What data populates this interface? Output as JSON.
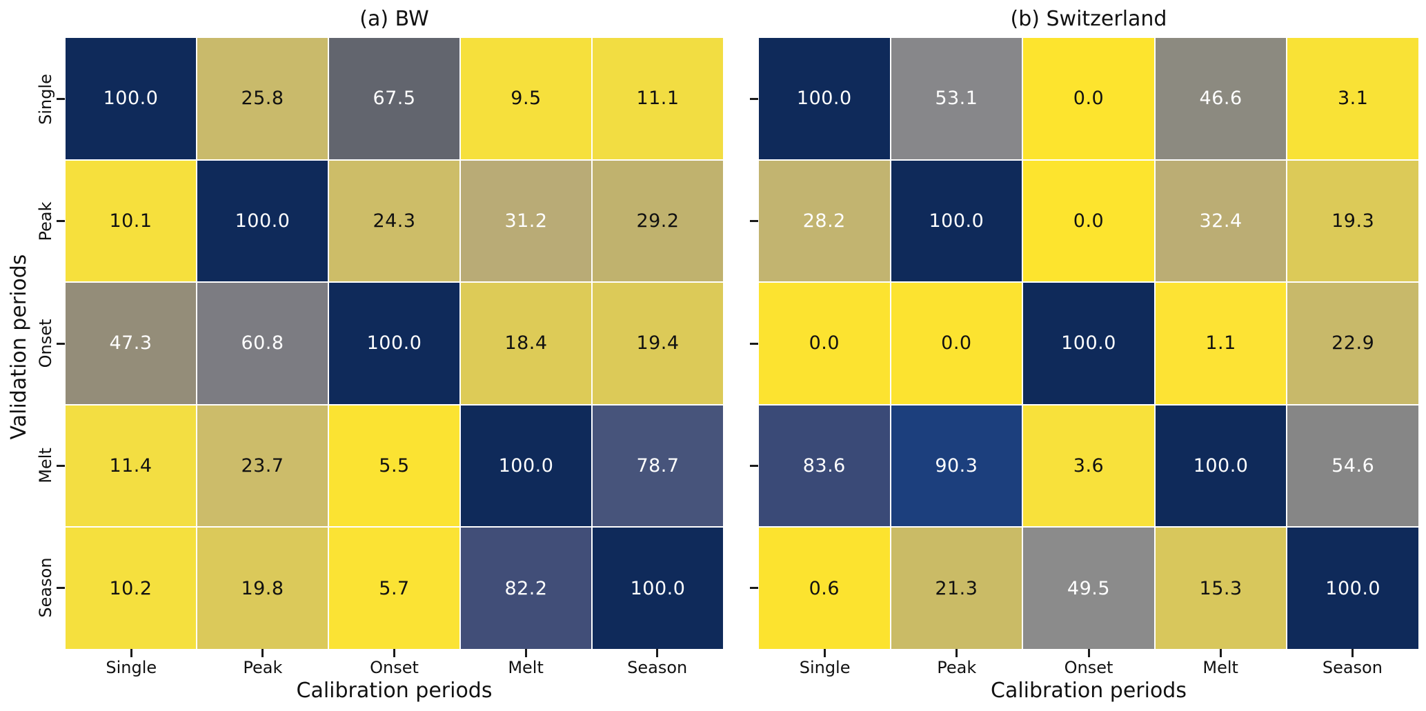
{
  "figure": {
    "background": "#ffffff",
    "text_color": "#111111",
    "gridline_color": "#ffffff",
    "colormap": {
      "name": "cividis_r",
      "high_color": "#0f2a5a",
      "low_color": "#fde42e"
    }
  },
  "chart_data": [
    {
      "type": "heatmap",
      "title": "(a) BW",
      "xlabel": "Calibration periods",
      "ylabel": "Validation periods",
      "x_categories": [
        "Single",
        "Peak",
        "Onset",
        "Melt",
        "Season"
      ],
      "y_categories": [
        "Single",
        "Peak",
        "Onset",
        "Melt",
        "Season"
      ],
      "value_range": [
        0,
        100
      ],
      "values": [
        [
          100.0,
          25.8,
          67.5,
          9.5,
          11.1
        ],
        [
          10.1,
          100.0,
          24.3,
          31.2,
          29.2
        ],
        [
          47.3,
          60.8,
          100.0,
          18.4,
          19.4
        ],
        [
          11.4,
          23.7,
          5.5,
          100.0,
          78.7
        ],
        [
          10.2,
          19.8,
          5.7,
          82.2,
          100.0
        ]
      ],
      "cell_colors": [
        [
          "#0f2a5a",
          "#c9ba6b",
          "#62656e",
          "#f6e03c",
          "#f2dd42"
        ],
        [
          "#f6e03d",
          "#0f2a5a",
          "#cdbd68",
          "#b9ab76",
          "#c0b26e"
        ],
        [
          "#948d79",
          "#7c7c82",
          "#0f2a5a",
          "#ddcb57",
          "#dcca58"
        ],
        [
          "#f3de42",
          "#ccbc6a",
          "#fbe332",
          "#0f2a5a",
          "#47547b"
        ],
        [
          "#f5e03e",
          "#dbc95a",
          "#fbe334",
          "#414e78",
          "#0f2a5a"
        ]
      ],
      "annot_colors": [
        [
          "#ffffff",
          "#111111",
          "#ffffff",
          "#111111",
          "#111111"
        ],
        [
          "#111111",
          "#ffffff",
          "#111111",
          "#ffffff",
          "#111111"
        ],
        [
          "#ffffff",
          "#ffffff",
          "#ffffff",
          "#111111",
          "#111111"
        ],
        [
          "#111111",
          "#111111",
          "#111111",
          "#ffffff",
          "#ffffff"
        ],
        [
          "#111111",
          "#111111",
          "#111111",
          "#ffffff",
          "#ffffff"
        ]
      ]
    },
    {
      "type": "heatmap",
      "title": "(b) Switzerland",
      "xlabel": "Calibration periods",
      "ylabel": "Validation periods",
      "x_categories": [
        "Single",
        "Peak",
        "Onset",
        "Melt",
        "Season"
      ],
      "y_categories": [
        "Single",
        "Peak",
        "Onset",
        "Melt",
        "Season"
      ],
      "value_range": [
        0,
        100
      ],
      "values": [
        [
          100.0,
          53.1,
          0.0,
          46.6,
          3.1
        ],
        [
          28.2,
          100.0,
          0.0,
          32.4,
          19.3
        ],
        [
          0.0,
          0.0,
          100.0,
          1.1,
          22.9
        ],
        [
          83.6,
          90.3,
          3.6,
          100.0,
          54.6
        ],
        [
          0.6,
          21.3,
          49.5,
          15.3,
          100.0
        ]
      ],
      "cell_colors": [
        [
          "#0f2a5a",
          "#87878a",
          "#fde42e",
          "#8c8a80",
          "#f9e236"
        ],
        [
          "#c2b470",
          "#0f2a5a",
          "#fde42e",
          "#bbad74",
          "#dcca58"
        ],
        [
          "#fce330",
          "#fce330",
          "#0f2a5a",
          "#fde334",
          "#c8b96a"
        ],
        [
          "#3a4a77",
          "#1c3f7d",
          "#f8e13b",
          "#0f2a5a",
          "#868686"
        ],
        [
          "#fce32f",
          "#cabb66",
          "#8b8b8b",
          "#d8c75c",
          "#0f2a5a"
        ]
      ],
      "annot_colors": [
        [
          "#ffffff",
          "#ffffff",
          "#111111",
          "#ffffff",
          "#111111"
        ],
        [
          "#ffffff",
          "#ffffff",
          "#111111",
          "#ffffff",
          "#111111"
        ],
        [
          "#111111",
          "#111111",
          "#ffffff",
          "#111111",
          "#111111"
        ],
        [
          "#ffffff",
          "#ffffff",
          "#111111",
          "#ffffff",
          "#ffffff"
        ],
        [
          "#111111",
          "#111111",
          "#ffffff",
          "#111111",
          "#ffffff"
        ]
      ]
    }
  ]
}
